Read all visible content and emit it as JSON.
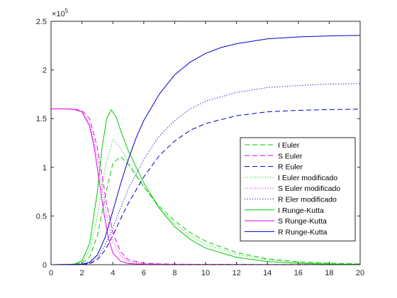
{
  "chart_data": {
    "type": "line",
    "title": "",
    "xlabel": "",
    "ylabel": "",
    "xlim": [
      0,
      20
    ],
    "ylim": [
      0,
      250000
    ],
    "x_ticks": [
      0,
      2,
      4,
      6,
      8,
      10,
      12,
      14,
      16,
      18,
      20
    ],
    "y_ticks": [
      0,
      0.5,
      1,
      1.5,
      2,
      2.5
    ],
    "y_tick_labels": [
      "0",
      "0.5",
      "1",
      "1.5",
      "2",
      "2.5"
    ],
    "y_multiplier": "×10",
    "y_exponent": "5",
    "grid": false,
    "legend_position": "center-right",
    "series": [
      {
        "name": "I Euler",
        "color": "#00cc00",
        "style": "dashed",
        "x": [
          0,
          1,
          1.5,
          2,
          2.5,
          3,
          3.5,
          4,
          4.5,
          5,
          6,
          7,
          8,
          9,
          10,
          12,
          14,
          16,
          18,
          20
        ],
        "y": [
          0,
          20,
          200,
          1500,
          8000,
          30000,
          70000,
          104000,
          111000,
          103000,
          80000,
          60000,
          45000,
          33000,
          24000,
          12500,
          6000,
          3000,
          1500,
          700
        ]
      },
      {
        "name": "S Euler",
        "color": "#e600e6",
        "style": "dashed",
        "x": [
          0,
          1,
          1.5,
          2,
          2.5,
          3,
          3.3,
          3.6,
          4,
          4.5,
          5,
          6,
          7,
          8,
          10,
          20
        ],
        "y": [
          160000,
          160000,
          159700,
          158000,
          150000,
          120000,
          92000,
          62000,
          33000,
          13000,
          5000,
          1500,
          800,
          500,
          300,
          100
        ]
      },
      {
        "name": "R Euler",
        "color": "#0000cc",
        "style": "dashed",
        "x": [
          0,
          2,
          2.5,
          3,
          3.5,
          4,
          4.5,
          5,
          6,
          7,
          8,
          9,
          10,
          12,
          14,
          16,
          18,
          20
        ],
        "y": [
          0,
          200,
          1000,
          5000,
          15000,
          30000,
          47000,
          63000,
          90000,
          112000,
          127000,
          138000,
          145000,
          153000,
          157000,
          158500,
          159300,
          159700
        ]
      },
      {
        "name": "I Euler modificado",
        "color": "#00cc00",
        "style": "dotted",
        "x": [
          0,
          1,
          1.5,
          2,
          2.5,
          3,
          3.5,
          4,
          4.5,
          5,
          6,
          7,
          8,
          9,
          10,
          12,
          14,
          16,
          18,
          20
        ],
        "y": [
          0,
          20,
          300,
          2500,
          14000,
          50000,
          100000,
          129000,
          120000,
          105000,
          80000,
          58000,
          42000,
          30000,
          21000,
          10500,
          5000,
          2400,
          1100,
          500
        ]
      },
      {
        "name": "S Euler modificado",
        "color": "#e600e6",
        "style": "dotted",
        "x": [
          0,
          1,
          1.5,
          2,
          2.5,
          3,
          3.3,
          3.6,
          4,
          4.5,
          5,
          6,
          7,
          8,
          10,
          20
        ],
        "y": [
          160000,
          160000,
          159500,
          157000,
          145000,
          110000,
          80000,
          50000,
          24000,
          9000,
          3500,
          1000,
          600,
          400,
          300,
          100
        ]
      },
      {
        "name": "R Eler modificado",
        "color": "#0000cc",
        "style": "dotted",
        "x": [
          0,
          2,
          2.5,
          3,
          3.5,
          4,
          4.5,
          5,
          6,
          7,
          8,
          9,
          10,
          12,
          14,
          16,
          18,
          20
        ],
        "y": [
          0,
          300,
          1500,
          7000,
          20000,
          38000,
          58000,
          78000,
          108000,
          132000,
          148000,
          160000,
          168000,
          177000,
          182000,
          184000,
          185500,
          186000
        ]
      },
      {
        "name": "I Runge-Kutta",
        "color": "#00cc00",
        "style": "solid",
        "x": [
          0,
          1,
          1.5,
          2,
          2.5,
          3,
          3.3,
          3.6,
          3.9,
          4.2,
          4.5,
          5,
          6,
          7,
          8,
          9,
          10,
          12,
          14,
          16,
          18,
          20
        ],
        "y": [
          0,
          50,
          500,
          4000,
          22000,
          75000,
          120000,
          150000,
          159000,
          152000,
          138000,
          117000,
          84000,
          58000,
          39000,
          26000,
          17000,
          7500,
          3200,
          1400,
          600,
          250
        ]
      },
      {
        "name": "S Runge-Kutta",
        "color": "#e600e6",
        "style": "solid",
        "x": [
          0,
          1,
          1.5,
          2,
          2.5,
          2.8,
          3.1,
          3.4,
          3.7,
          4,
          4.5,
          5,
          6,
          7,
          8,
          10,
          20
        ],
        "y": [
          160000,
          160000,
          159500,
          157000,
          142000,
          120000,
          88000,
          55000,
          28000,
          12000,
          3500,
          1200,
          400,
          200,
          100,
          50,
          20
        ]
      },
      {
        "name": "R Runge-Kutta",
        "color": "#0000cc",
        "style": "solid",
        "x": [
          0,
          2,
          2.5,
          3,
          3.5,
          4,
          4.5,
          5,
          5.5,
          6,
          7,
          8,
          9,
          10,
          11,
          12,
          14,
          16,
          18,
          20
        ],
        "y": [
          0,
          500,
          2500,
          10000,
          28000,
          55000,
          83000,
          108000,
          130000,
          148000,
          175000,
          195000,
          208000,
          217000,
          223000,
          227000,
          232000,
          234000,
          235000,
          235500
        ]
      }
    ]
  }
}
